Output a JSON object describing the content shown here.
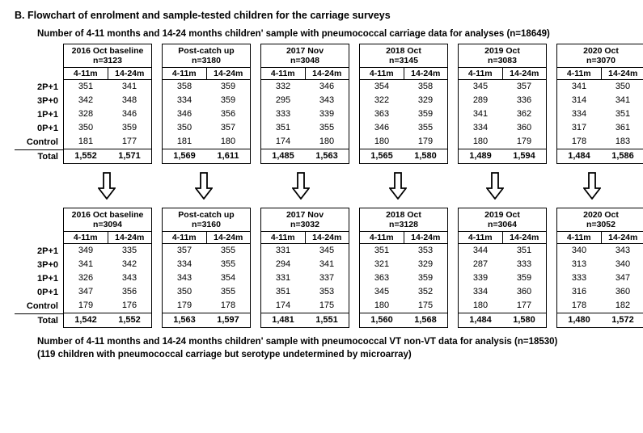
{
  "title": "B. Flowchart of enrolment and sample-tested children for the carriage surveys",
  "top_caption": "Number of 4-11 months and 14-24 months children' sample with pneumococcal carriage data for analyses (n=18649)",
  "bottom_caption_line1": "Number of 4-11 months and 14-24 months children' sample with pneumococcal VT non-VT data for analysis (n=18530)",
  "bottom_caption_line2": "(119 children with pneumococcal carriage but serotype undetermined by microarray)",
  "row_labels": [
    "2P+1",
    "3P+0",
    "1P+1",
    "0P+1",
    "Control",
    "Total"
  ],
  "col_headers": [
    "4-11m",
    "14-24m"
  ],
  "arrow": {
    "width": 22,
    "height": 34,
    "stroke": "#000",
    "stroke_width": 1.8,
    "fill": "#fff"
  },
  "border_color": "#000",
  "font_family": "Arial",
  "top": {
    "panels": [
      {
        "header": [
          "2016 Oct baseline",
          "n=3123"
        ],
        "rows": [
          [
            351,
            341
          ],
          [
            342,
            348
          ],
          [
            328,
            346
          ],
          [
            350,
            359
          ],
          [
            181,
            177
          ],
          [
            "1,552",
            "1,571"
          ]
        ]
      },
      {
        "header": [
          "Post-catch up",
          "n=3180"
        ],
        "rows": [
          [
            358,
            359
          ],
          [
            334,
            359
          ],
          [
            346,
            356
          ],
          [
            350,
            357
          ],
          [
            181,
            180
          ],
          [
            "1,569",
            "1,611"
          ]
        ]
      },
      {
        "header": [
          "2017 Nov",
          "n=3048"
        ],
        "rows": [
          [
            332,
            346
          ],
          [
            295,
            343
          ],
          [
            333,
            339
          ],
          [
            351,
            355
          ],
          [
            174,
            180
          ],
          [
            "1,485",
            "1,563"
          ]
        ]
      },
      {
        "header": [
          "2018 Oct",
          "n=3145"
        ],
        "rows": [
          [
            354,
            358
          ],
          [
            322,
            329
          ],
          [
            363,
            359
          ],
          [
            346,
            355
          ],
          [
            180,
            179
          ],
          [
            "1,565",
            "1,580"
          ]
        ]
      },
      {
        "header": [
          "2019 Oct",
          "n=3083"
        ],
        "rows": [
          [
            345,
            357
          ],
          [
            289,
            336
          ],
          [
            341,
            362
          ],
          [
            334,
            360
          ],
          [
            180,
            179
          ],
          [
            "1,489",
            "1,594"
          ]
        ]
      },
      {
        "header": [
          "2020 Oct",
          "n=3070"
        ],
        "rows": [
          [
            341,
            350
          ],
          [
            314,
            341
          ],
          [
            334,
            351
          ],
          [
            317,
            361
          ],
          [
            178,
            183
          ],
          [
            "1,484",
            "1,586"
          ]
        ]
      }
    ]
  },
  "bottom": {
    "panels": [
      {
        "header": [
          "2016 Oct baseline",
          "n=3094"
        ],
        "rows": [
          [
            349,
            335
          ],
          [
            341,
            342
          ],
          [
            326,
            343
          ],
          [
            347,
            356
          ],
          [
            179,
            176
          ],
          [
            "1,542",
            "1,552"
          ]
        ]
      },
      {
        "header": [
          "Post-catch up",
          "n=3160"
        ],
        "rows": [
          [
            357,
            355
          ],
          [
            334,
            355
          ],
          [
            343,
            354
          ],
          [
            350,
            355
          ],
          [
            179,
            178
          ],
          [
            "1,563",
            "1,597"
          ]
        ]
      },
      {
        "header": [
          "2017 Nov",
          "n=3032"
        ],
        "rows": [
          [
            331,
            345
          ],
          [
            294,
            341
          ],
          [
            331,
            337
          ],
          [
            351,
            353
          ],
          [
            174,
            175
          ],
          [
            "1,481",
            "1,551"
          ]
        ]
      },
      {
        "header": [
          "2018 Oct",
          "n=3128"
        ],
        "rows": [
          [
            351,
            353
          ],
          [
            321,
            329
          ],
          [
            363,
            359
          ],
          [
            345,
            352
          ],
          [
            180,
            175
          ],
          [
            "1,560",
            "1,568"
          ]
        ]
      },
      {
        "header": [
          "2019 Oct",
          "n=3064"
        ],
        "rows": [
          [
            344,
            351
          ],
          [
            287,
            333
          ],
          [
            339,
            359
          ],
          [
            334,
            360
          ],
          [
            180,
            177
          ],
          [
            "1,484",
            "1,580"
          ]
        ]
      },
      {
        "header": [
          "2020 Oct",
          "n=3052"
        ],
        "rows": [
          [
            340,
            343
          ],
          [
            313,
            340
          ],
          [
            333,
            347
          ],
          [
            316,
            360
          ],
          [
            178,
            182
          ],
          [
            "1,480",
            "1,572"
          ]
        ]
      }
    ]
  }
}
